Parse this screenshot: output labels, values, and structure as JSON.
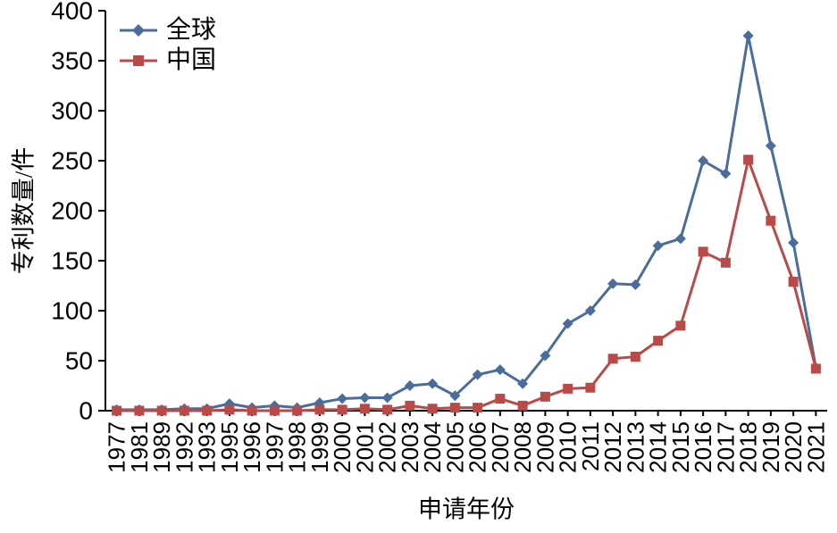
{
  "chart_data": {
    "type": "line",
    "title": "",
    "xlabel": "申请年份",
    "ylabel": "专利数量/件",
    "ylim": [
      0,
      400
    ],
    "ytick_step": 50,
    "grid": false,
    "legend_position": "top-left",
    "categories": [
      "1977",
      "1981",
      "1989",
      "1992",
      "1993",
      "1995",
      "1996",
      "1997",
      "1998",
      "1999",
      "2000",
      "2001",
      "2002",
      "2003",
      "2004",
      "2005",
      "2006",
      "2007",
      "2008",
      "2009",
      "2010",
      "2011",
      "2012",
      "2013",
      "2014",
      "2015",
      "2016",
      "2017",
      "2018",
      "2019",
      "2020",
      "2021"
    ],
    "series": [
      {
        "name": "全球",
        "color": "#4a6d9b",
        "marker": "diamond",
        "values": [
          1,
          1,
          1,
          2,
          2,
          7,
          3,
          5,
          3,
          8,
          12,
          13,
          13,
          25,
          27,
          15,
          36,
          41,
          27,
          55,
          87,
          100,
          127,
          126,
          165,
          172,
          250,
          237,
          375,
          265,
          168,
          43
        ]
      },
      {
        "name": "中国",
        "color": "#b94a47",
        "marker": "square",
        "values": [
          0,
          0,
          0,
          0,
          0,
          1,
          0,
          0,
          0,
          1,
          1,
          2,
          1,
          5,
          2,
          3,
          3,
          12,
          5,
          14,
          22,
          23,
          52,
          54,
          70,
          85,
          159,
          148,
          251,
          190,
          129,
          42
        ]
      }
    ]
  }
}
